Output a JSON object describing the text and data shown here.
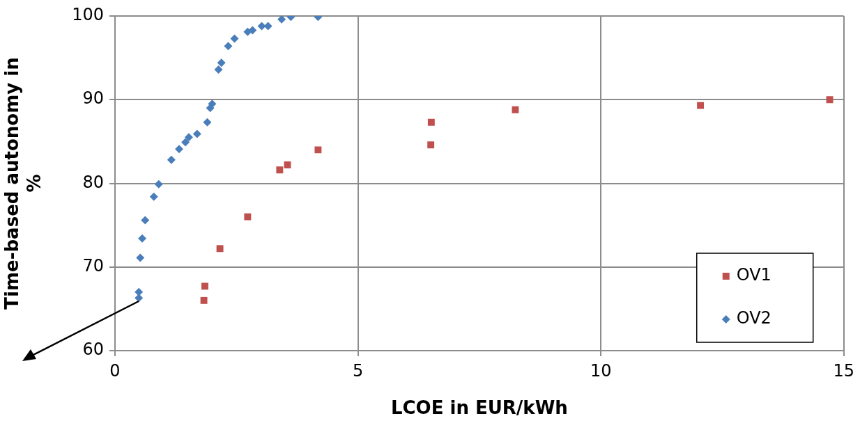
{
  "chart_data": {
    "type": "scatter",
    "xlabel": "LCOE in EUR/kWh",
    "ylabel": "Time-based autonomy in %",
    "xlim": [
      0,
      15
    ],
    "xticks": [
      0,
      5,
      10,
      15
    ],
    "ylim": [
      60,
      100
    ],
    "yticks": [
      60,
      70,
      80,
      90,
      100
    ],
    "grid": true,
    "legend": "bottom right",
    "series": [
      {
        "name": "OV1",
        "color": "#c0504d",
        "marker": "square",
        "x": [
          1.83,
          1.85,
          2.16,
          2.73,
          3.39,
          3.55,
          4.18,
          6.5,
          6.51,
          8.24,
          12.05,
          14.71
        ],
        "values": [
          66.0,
          67.7,
          72.2,
          76.0,
          81.6,
          82.2,
          84.0,
          84.6,
          87.3,
          88.8,
          89.3,
          90.0
        ]
      },
      {
        "name": "OV2",
        "color": "#4a7ebb",
        "marker": "diamond",
        "x": [
          0.49,
          0.49,
          0.52,
          0.56,
          0.62,
          0.8,
          0.9,
          1.16,
          1.32,
          1.45,
          1.52,
          1.69,
          1.9,
          1.96,
          2.0,
          2.13,
          2.19,
          2.33,
          2.46,
          2.73,
          2.83,
          3.02,
          3.15,
          3.43,
          3.62,
          4.18
        ],
        "values": [
          66.3,
          67.0,
          71.1,
          73.4,
          75.6,
          78.4,
          79.9,
          82.8,
          84.1,
          84.9,
          85.5,
          85.9,
          87.3,
          89.0,
          89.5,
          93.6,
          94.4,
          96.4,
          97.3,
          98.1,
          98.3,
          98.8,
          98.8,
          99.6,
          99.9,
          99.9
        ]
      }
    ]
  }
}
